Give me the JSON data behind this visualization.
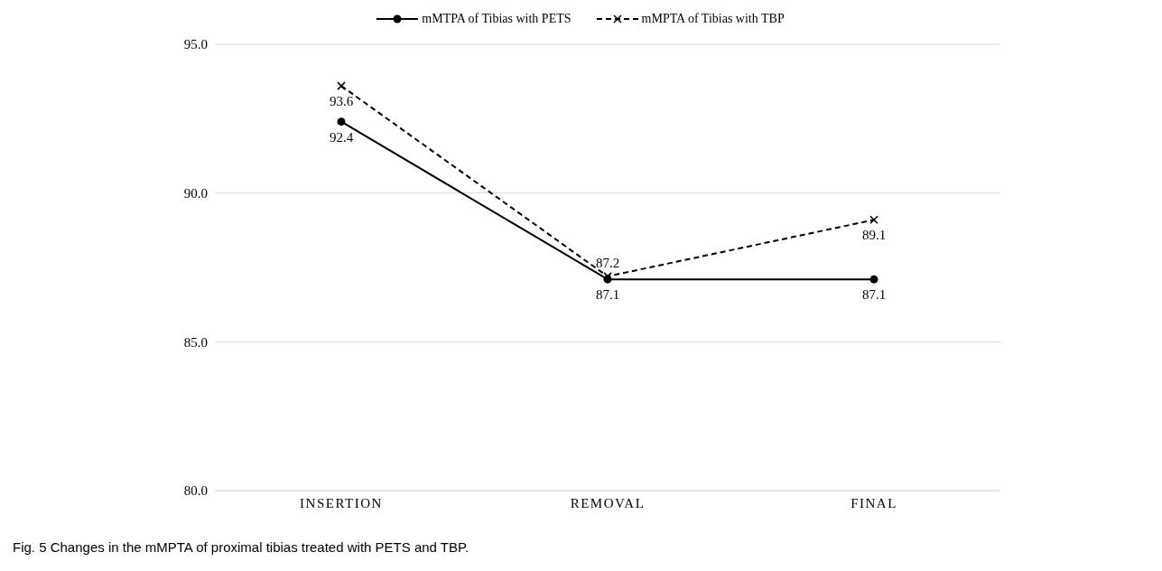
{
  "chart_data": {
    "type": "line",
    "categories": [
      "INSERTION",
      "REMOVAL",
      "FINAL"
    ],
    "series": [
      {
        "name": "mMTPA of Tibias with PETS",
        "color": "#000000",
        "values": [
          92.4,
          87.1,
          87.1
        ],
        "marker": "circle",
        "line_style": "solid"
      },
      {
        "name": "mMPTA of Tibias with TBP",
        "color": "#000000",
        "values": [
          93.6,
          87.2,
          89.1
        ],
        "marker": "cross",
        "line_style": "dashed"
      }
    ],
    "ylim": [
      80,
      95
    ],
    "yticks": [
      {
        "value": 80,
        "label": "80.0"
      },
      {
        "value": 85,
        "label": "85.0"
      },
      {
        "value": 90,
        "label": "90.0"
      },
      {
        "value": 95,
        "label": "95.0"
      }
    ],
    "grid": "y",
    "legend": "top",
    "data_labels": true,
    "annotations": [
      "Fig. 5 Changes in the mMPTA of proximal tibias treated with PETS and TBP."
    ]
  }
}
